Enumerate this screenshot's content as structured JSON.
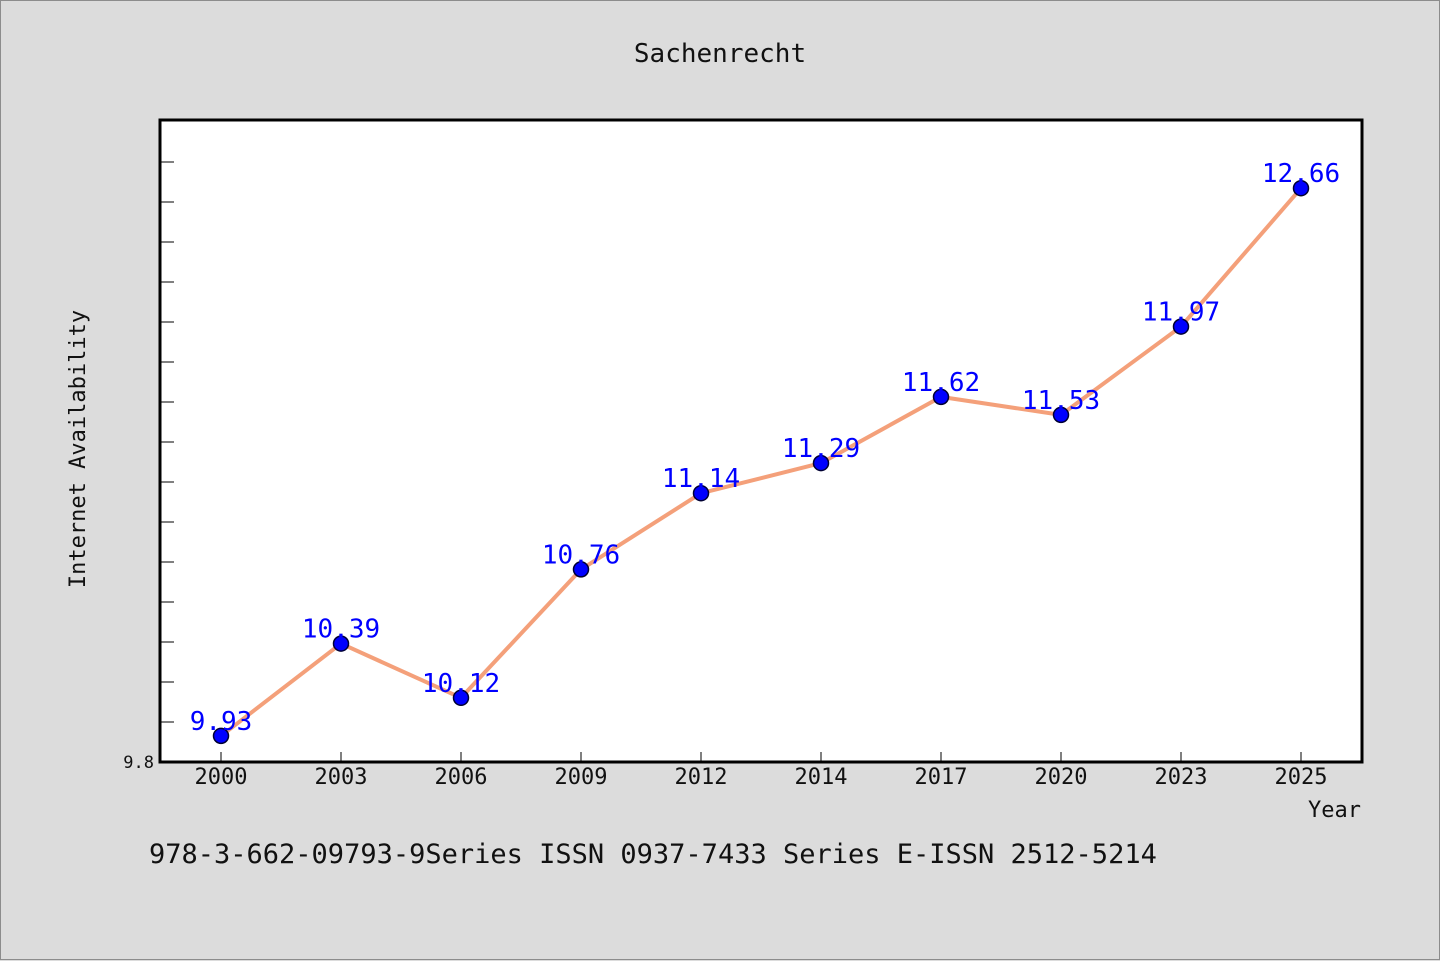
{
  "chart_data": {
    "type": "line",
    "title": "Sachenrecht",
    "xlabel": "Year",
    "ylabel": "Internet Availability",
    "categories": [
      "2000",
      "2003",
      "2006",
      "2009",
      "2012",
      "2014",
      "2017",
      "2020",
      "2023",
      "2025"
    ],
    "series": [
      {
        "values": [
          9.93,
          10.39,
          10.12,
          10.76,
          11.14,
          11.29,
          11.62,
          11.53,
          11.97,
          12.66
        ],
        "labels": [
          "9.93",
          "10.39",
          "10.12",
          "10.76",
          "11.14",
          "11.29",
          "11.62",
          "11.53",
          "11.97",
          "12.66"
        ]
      }
    ],
    "ylim": [
      9.8,
      13.0
    ],
    "y_tick_labels": [
      "9.8"
    ],
    "grid": false,
    "colors": {
      "line": "#f4a07a",
      "marker": "#0000ff",
      "marker_edge": "#000033",
      "label": "#0000ff",
      "plot_background": "#ffffff",
      "page_background": "#dcdcdc"
    }
  },
  "footer": {
    "text": "978-3-662-09793-9Series ISSN 0937-7433 Series E-ISSN 2512-5214"
  }
}
